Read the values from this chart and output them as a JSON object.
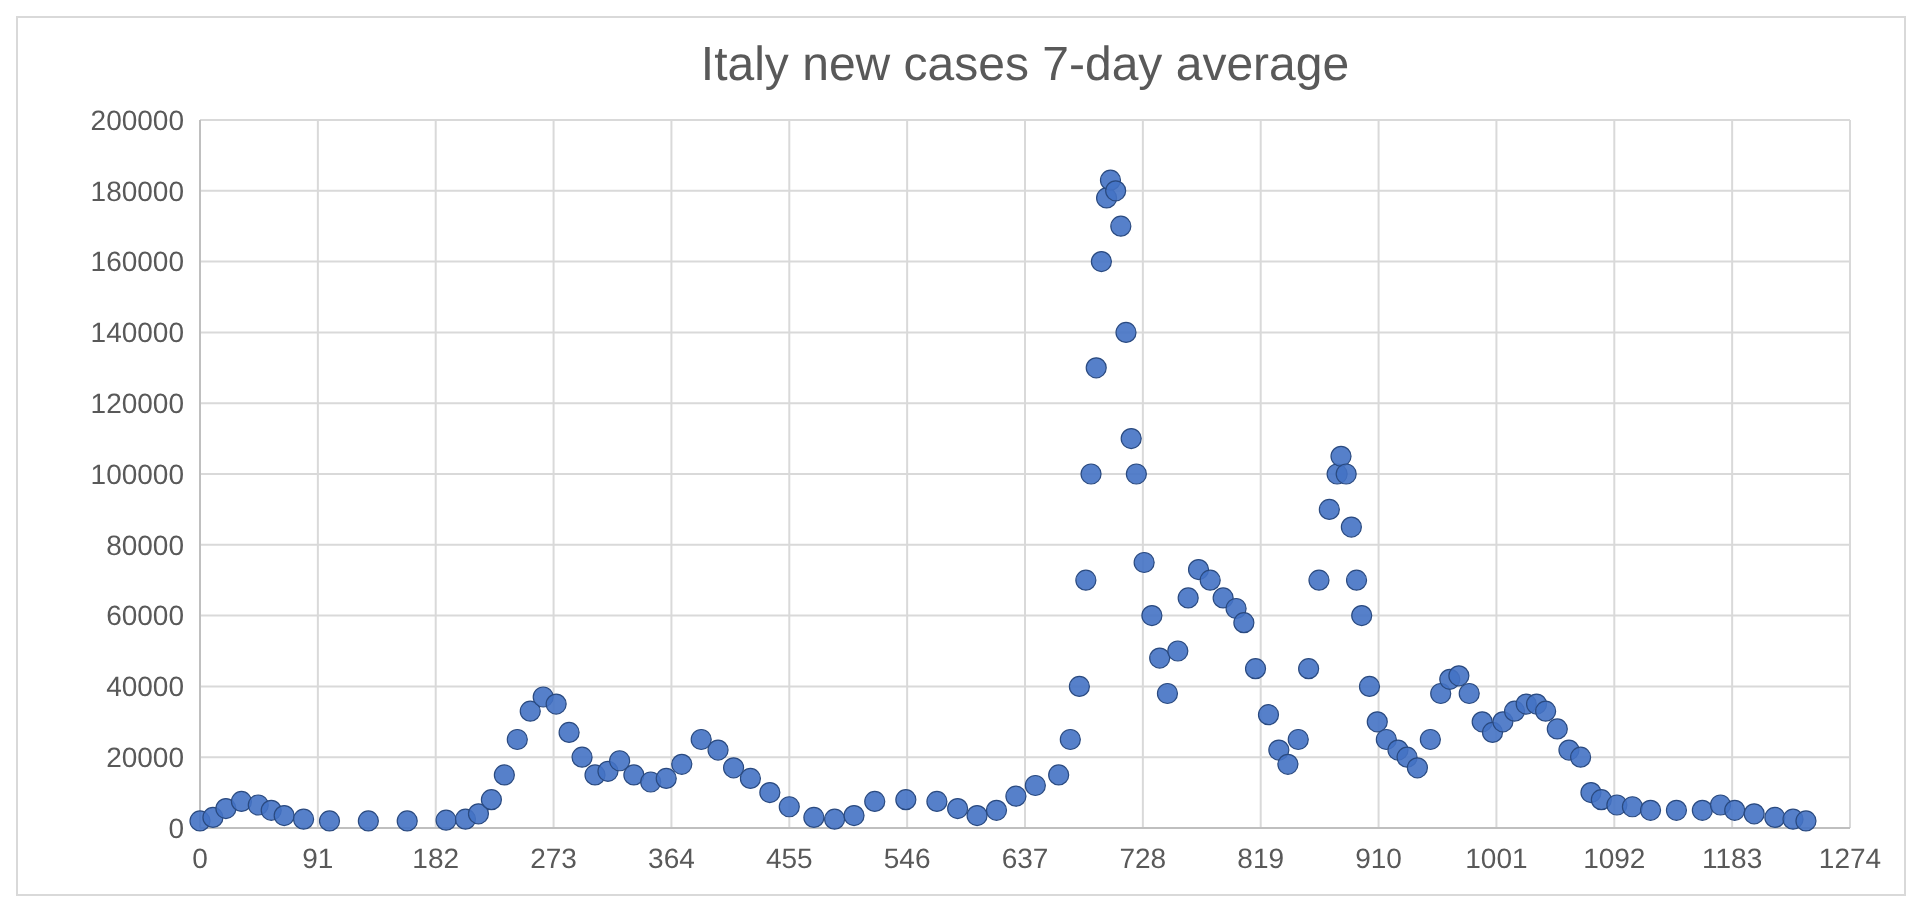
{
  "chart_data": {
    "type": "scatter",
    "title": "Italy new cases 7-day average",
    "marker": "circle",
    "grid": true,
    "xlim": [
      0,
      1274
    ],
    "xticks": [
      0,
      91,
      182,
      273,
      364,
      455,
      546,
      637,
      728,
      819,
      910,
      1001,
      1092,
      1183,
      1274
    ],
    "ylim": [
      0,
      200000
    ],
    "yticks": [
      0,
      20000,
      40000,
      60000,
      80000,
      100000,
      120000,
      140000,
      160000,
      180000,
      200000
    ],
    "series": [
      {
        "color": "#4472c4",
        "x": [
          0,
          10,
          20,
          32,
          45,
          55,
          65,
          80,
          100,
          130,
          160,
          190,
          205,
          215,
          225,
          235,
          245,
          255,
          265,
          275,
          285,
          295,
          305,
          315,
          324,
          335,
          348,
          360,
          372,
          387,
          400,
          412,
          425,
          440,
          455,
          474,
          490,
          505,
          521,
          545,
          569,
          585,
          600,
          615,
          630,
          645,
          663,
          672,
          679,
          684,
          688,
          692,
          696,
          700,
          703,
          707,
          711,
          715,
          719,
          723,
          729,
          735,
          741,
          747,
          755,
          763,
          771,
          780,
          790,
          800,
          806,
          815,
          825,
          833,
          840,
          848,
          856,
          864,
          872,
          878,
          881,
          885,
          889,
          893,
          897,
          903,
          909,
          916,
          925,
          932,
          940,
          950,
          958,
          965,
          972,
          980,
          990,
          998,
          1006,
          1015,
          1024,
          1032,
          1039,
          1048,
          1057,
          1066,
          1074,
          1082,
          1094,
          1106,
          1120,
          1140,
          1160,
          1174,
          1185,
          1200,
          1216,
          1230,
          1240
        ],
        "values": [
          2000,
          3000,
          5500,
          7500,
          6500,
          5000,
          3500,
          2500,
          2000,
          2000,
          2000,
          2200,
          2500,
          4000,
          8000,
          15000,
          25000,
          33000,
          37000,
          35000,
          27000,
          20000,
          15000,
          16000,
          19000,
          15000,
          13000,
          14000,
          18000,
          25000,
          22000,
          17000,
          14000,
          10000,
          6000,
          3000,
          2500,
          3500,
          7500,
          8000,
          7500,
          5500,
          3500,
          5000,
          9000,
          12000,
          15000,
          25000,
          40000,
          70000,
          100000,
          130000,
          160000,
          178000,
          183000,
          180000,
          170000,
          140000,
          110000,
          100000,
          75000,
          60000,
          48000,
          38000,
          50000,
          65000,
          73000,
          70000,
          65000,
          62000,
          58000,
          45000,
          32000,
          22000,
          18000,
          25000,
          45000,
          70000,
          90000,
          100000,
          105000,
          100000,
          85000,
          70000,
          60000,
          40000,
          30000,
          25000,
          22000,
          20000,
          17000,
          25000,
          38000,
          42000,
          43000,
          38000,
          30000,
          27000,
          30000,
          33000,
          35000,
          35000,
          33000,
          28000,
          22000,
          20000,
          10000,
          8000,
          6500,
          6000,
          5000,
          5000,
          5000,
          6500,
          5000,
          4000,
          3000,
          2500,
          2000
        ]
      }
    ]
  }
}
